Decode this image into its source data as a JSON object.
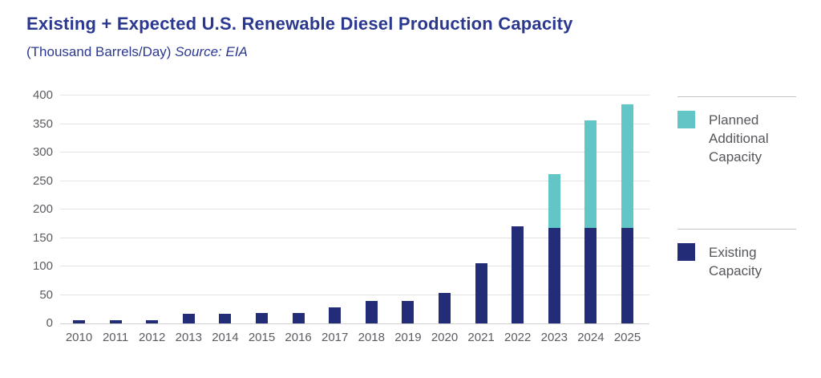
{
  "header": {
    "title": "Existing + Expected U.S. Renewable Diesel Production Capacity",
    "subtitle_units": "(Thousand Barrels/Day) ",
    "subtitle_source": "Source: EIA"
  },
  "colors": {
    "title_text": "#2B3890",
    "existing_bar": "#222C77",
    "planned_bar": "#62C6C6",
    "axis_text": "#5A5C61",
    "legend_text": "#55575B",
    "gridline": "#E3E3E3",
    "axis_line": "#CFCFCF"
  },
  "legend": {
    "items": [
      {
        "label": "Planned Additional Capacity",
        "color": "#62C6C6",
        "series_key": "planned"
      },
      {
        "label": "Existing Capacity",
        "color": "#222C77",
        "series_key": "existing"
      }
    ],
    "position": "right"
  },
  "chart_data": {
    "type": "bar",
    "stacked": true,
    "title": "Existing + Expected U.S. Renewable Diesel Production Capacity",
    "subtitle": "(Thousand Barrels/Day) Source: EIA",
    "xlabel": "",
    "ylabel": "Thousand Barrels/Day",
    "categories": [
      "2010",
      "2011",
      "2012",
      "2013",
      "2014",
      "2015",
      "2016",
      "2017",
      "2018",
      "2019",
      "2020",
      "2021",
      "2022",
      "2023",
      "2024",
      "2025"
    ],
    "series": [
      {
        "name": "Existing Capacity",
        "color": "#222C77",
        "values": [
          5,
          5,
          5,
          17,
          17,
          19,
          19,
          28,
          39,
          39,
          54,
          106,
          170,
          167,
          167,
          167
        ]
      },
      {
        "name": "Planned Additional Capacity",
        "color": "#62C6C6",
        "values": [
          0,
          0,
          0,
          0,
          0,
          0,
          0,
          0,
          0,
          0,
          0,
          0,
          0,
          95,
          190,
          218
        ]
      }
    ],
    "stack_totals": [
      5,
      5,
      5,
      17,
      17,
      19,
      19,
      28,
      39,
      39,
      54,
      106,
      170,
      262,
      357,
      385
    ],
    "ylim": [
      0,
      400
    ],
    "yticks": [
      0,
      50,
      100,
      150,
      200,
      250,
      300,
      350,
      400
    ],
    "grid": true,
    "legend_position": "right"
  }
}
